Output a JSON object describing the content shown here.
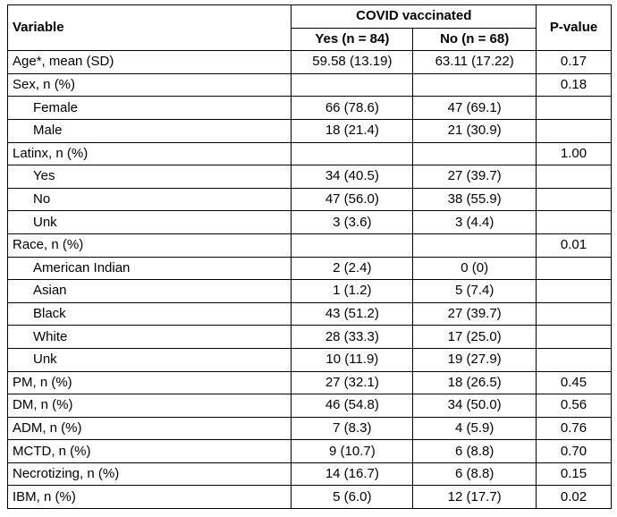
{
  "table": {
    "header": {
      "variable": "Variable",
      "group": "COVID vaccinated",
      "yes": "Yes (n = 84)",
      "no": "No (n = 68)",
      "pvalue": "P-value"
    },
    "rows": [
      {
        "cells": [
          "Age*, mean (SD)",
          "59.58 (13.19)",
          "63.11 (17.22)",
          "0.17"
        ],
        "subrows": []
      },
      {
        "cells": [
          "Sex, n (%)",
          null,
          null,
          "0.18"
        ],
        "subrows": [
          [
            "Female",
            "66 (78.6)",
            "47 (69.1)",
            null
          ],
          [
            "Male",
            "18 (21.4)",
            "21 (30.9)",
            null
          ]
        ]
      },
      {
        "cells": [
          "Latinx, n (%)",
          null,
          null,
          "1.00"
        ],
        "subrows": [
          [
            "Yes",
            "34 (40.5)",
            "27 (39.7)",
            null
          ],
          [
            "No",
            "47 (56.0)",
            "38 (55.9)",
            null
          ],
          [
            "Unk",
            "3 (3.6)",
            "3 (4.4)",
            null
          ]
        ]
      },
      {
        "cells": [
          "Race, n (%)",
          null,
          null,
          "0.01"
        ],
        "subrows": [
          [
            "American Indian",
            "2 (2.4)",
            "0 (0)",
            null
          ],
          [
            "Asian",
            "1 (1.2)",
            "5 (7.4)",
            null
          ],
          [
            "Black",
            "43 (51.2)",
            "27 (39.7)",
            null
          ],
          [
            "White",
            "28 (33.3)",
            "17 (25.0)",
            null
          ],
          [
            "Unk",
            "10 (11.9)",
            "19 (27.9)",
            null
          ]
        ]
      },
      {
        "cells": [
          "PM, n (%)",
          "27 (32.1)",
          "18 (26.5)",
          "0.45"
        ],
        "subrows": []
      },
      {
        "cells": [
          "DM, n (%)",
          "46 (54.8)",
          "34 (50.0)",
          "0.56"
        ],
        "subrows": []
      },
      {
        "cells": [
          "ADM, n (%)",
          "7 (8.3)",
          "4 (5.9)",
          "0.76"
        ],
        "subrows": []
      },
      {
        "cells": [
          "MCTD, n (%)",
          "9 (10.7)",
          "6 (8.8)",
          "0.70"
        ],
        "subrows": []
      },
      {
        "cells": [
          "Necrotizing, n (%)",
          "14 (16.7)",
          "6 (8.8)",
          "0.15"
        ],
        "subrows": []
      },
      {
        "cells": [
          "IBM, n (%)",
          "5 (6.0)",
          "12 (17.7)",
          "0.02"
        ],
        "subrows": []
      }
    ]
  }
}
